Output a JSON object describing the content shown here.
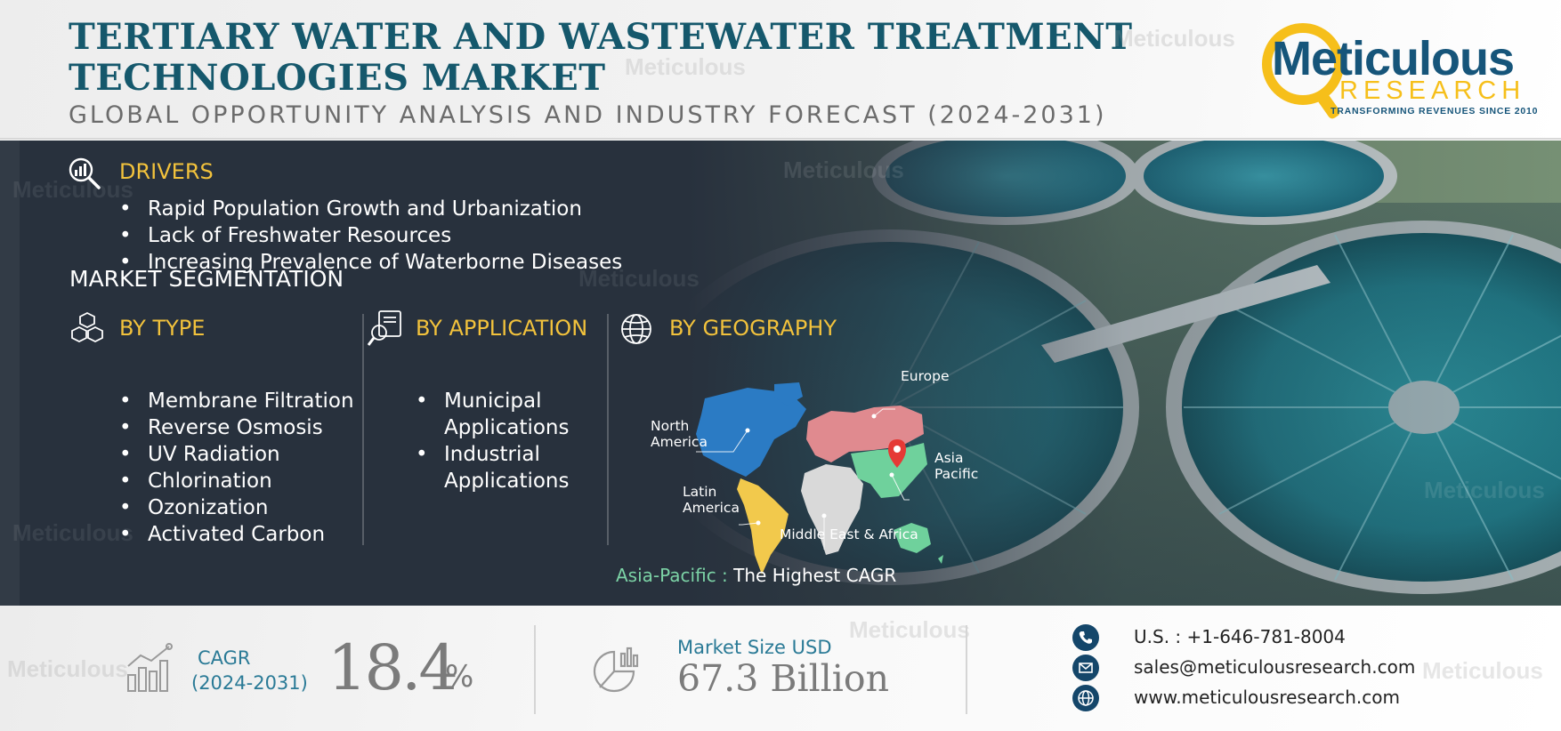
{
  "header": {
    "title_line1": "TERTIARY WATER AND WASTEWATER TREATMENT",
    "title_line2": "TECHNOLOGIES MARKET",
    "subtitle": "GLOBAL OPPORTUNITY ANALYSIS AND INDUSTRY FORECAST (2024-2031)"
  },
  "logo": {
    "name": "Meticulous",
    "research": "RESEARCH",
    "tagline": "TRANSFORMING REVENUES SINCE 2010"
  },
  "watermark": "Meticulous",
  "drivers": {
    "heading": "DRIVERS",
    "icon": "magnifier-chart-icon",
    "items": [
      "Rapid Population Growth and Urbanization",
      "Lack of Freshwater Resources",
      "Increasing Prevalence of Waterborne Diseases"
    ]
  },
  "segmentation": {
    "title": "MARKET SEGMENTATION",
    "by_type": {
      "heading": "BY TYPE",
      "icon": "cubes-icon",
      "items": [
        "Membrane Filtration",
        "Reverse Osmosis",
        "UV Radiation",
        "Chlorination",
        "Ozonization",
        "Activated Carbon"
      ]
    },
    "by_application": {
      "heading": "BY APPLICATION",
      "icon": "document-search-icon",
      "items": [
        {
          "line1": "Municipal",
          "line2": "Applications"
        },
        {
          "line1": "Industrial",
          "line2": "Applications"
        }
      ]
    },
    "by_geography": {
      "heading": "BY GEOGRAPHY",
      "icon": "globe-icon",
      "regions": {
        "europe": "Europe",
        "north_america_1": "North",
        "north_america_2": "America",
        "asia_pacific_1": "Asia",
        "asia_pacific_2": "Pacific",
        "latin_america_1": "Latin",
        "latin_america_2": "America",
        "mea": "Middle East & Africa"
      },
      "region_colors": {
        "north_america": "#2b7bc4",
        "europe": "#e08a8f",
        "asia_pacific": "#6fd19c",
        "latin_america": "#f2c94c",
        "middle_east_africa": "#d9d9d9",
        "pin": "#e53935"
      },
      "highlight_region": "Asia-Pacific :",
      "highlight_text": " The Highest CAGR"
    }
  },
  "footer": {
    "cagr_label": "CAGR",
    "cagr_period": "(2024-2031)",
    "cagr_value": "18.4",
    "cagr_unit": "%",
    "market_label": "Market Size USD",
    "market_value": "67.3 Billion",
    "phone": "U.S. : +1-646-781-8004",
    "email": "sales@meticulousresearch.com",
    "website": "www.meticulousresearch.com"
  },
  "colors": {
    "title": "#15586c",
    "accent_yellow": "#f2c23c",
    "panel_dark": "#28313d",
    "teal_text": "#2a7a96",
    "logo_blue": "#16557a",
    "logo_yellow": "#f6bf1a"
  }
}
